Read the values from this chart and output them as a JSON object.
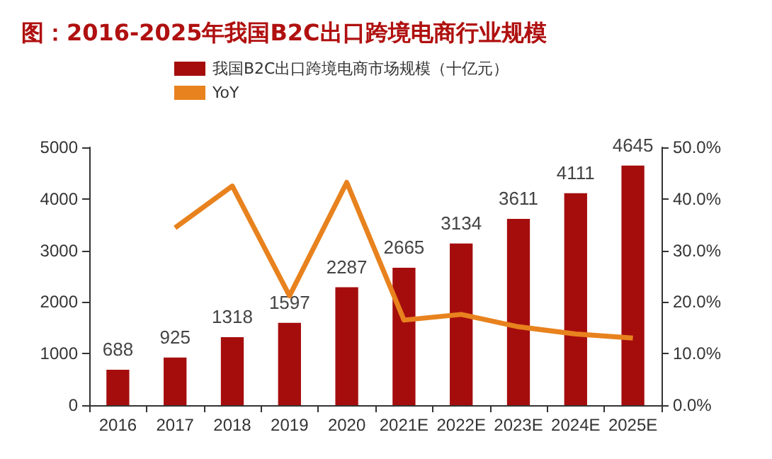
{
  "chart_data": {
    "type": "bar",
    "title": "图：2016-2025年我国B2C出口跨境电商行业规模",
    "categories": [
      "2016",
      "2017",
      "2018",
      "2019",
      "2020",
      "2021E",
      "2022E",
      "2023E",
      "2024E",
      "2025E"
    ],
    "series": [
      {
        "name": "我国B2C出口跨境电商市场规模（十亿元）",
        "color": "#a50d0d",
        "values": [
          688,
          925,
          1318,
          1597,
          2287,
          2665,
          3134,
          3611,
          4111,
          4645
        ],
        "value_labels": [
          "688",
          "925",
          "1318",
          "1597",
          "2287",
          "2665",
          "3134",
          "3611",
          "4111",
          "4645"
        ]
      },
      {
        "name": "YoY",
        "type": "line",
        "axis": "y2",
        "color": "#e8821e",
        "values": [
          null,
          34.4,
          42.5,
          21.2,
          43.2,
          16.5,
          17.6,
          15.2,
          13.8,
          13.0
        ]
      }
    ],
    "ylim": [
      0,
      5000
    ],
    "yticks": [
      0,
      1000,
      2000,
      3000,
      4000,
      5000
    ],
    "y2lim": [
      0,
      50
    ],
    "y2ticks": [
      {
        "value": 0,
        "label": "0.0%"
      },
      {
        "value": 10,
        "label": "10.0%"
      },
      {
        "value": 20,
        "label": "20.0%"
      },
      {
        "value": 30,
        "label": "30.0%"
      },
      {
        "value": 40,
        "label": "40.0%"
      },
      {
        "value": 50,
        "label": "50.0%"
      }
    ],
    "grid": false,
    "legend": "top",
    "marker": "none"
  }
}
